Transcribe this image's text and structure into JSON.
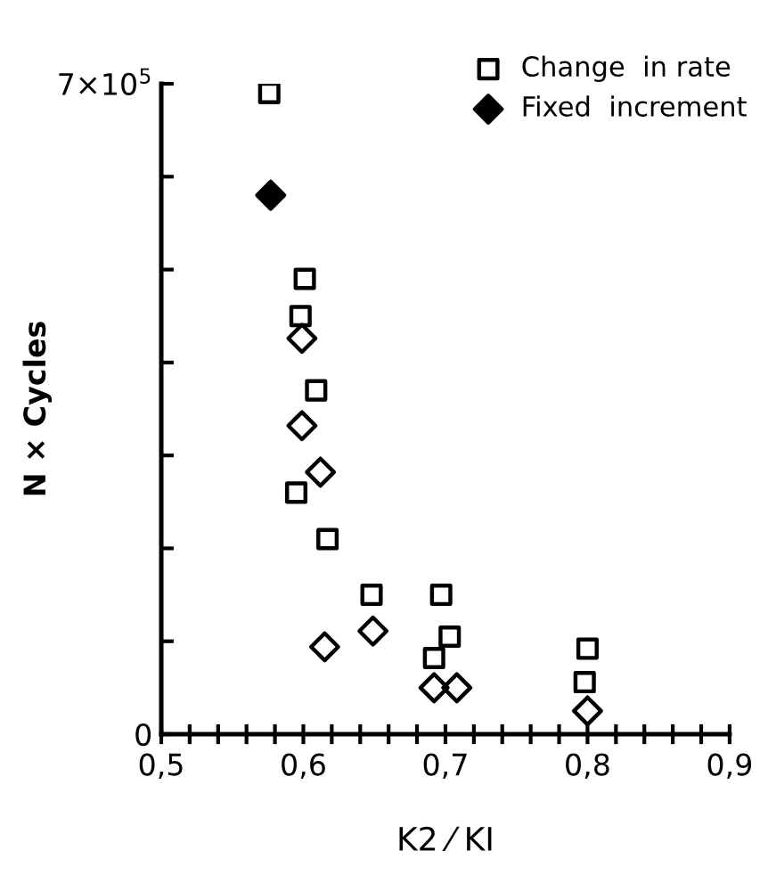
{
  "chart_data": {
    "type": "scatter",
    "xlabel": "K2 ⁄ KI",
    "ylabel": "N × Cycles",
    "xlim": [
      0.5,
      0.9
    ],
    "ylim": [
      0,
      700000
    ],
    "xticks": [
      {
        "value": 0.5,
        "label": "0,5"
      },
      {
        "value": 0.52,
        "label": null
      },
      {
        "value": 0.54,
        "label": null
      },
      {
        "value": 0.56,
        "label": null
      },
      {
        "value": 0.58,
        "label": null
      },
      {
        "value": 0.6,
        "label": "0,6"
      },
      {
        "value": 0.62,
        "label": null
      },
      {
        "value": 0.64,
        "label": null
      },
      {
        "value": 0.66,
        "label": null
      },
      {
        "value": 0.68,
        "label": null
      },
      {
        "value": 0.7,
        "label": "0,7"
      },
      {
        "value": 0.72,
        "label": null
      },
      {
        "value": 0.74,
        "label": null
      },
      {
        "value": 0.76,
        "label": null
      },
      {
        "value": 0.78,
        "label": null
      },
      {
        "value": 0.8,
        "label": "0,8"
      },
      {
        "value": 0.82,
        "label": null
      },
      {
        "value": 0.84,
        "label": null
      },
      {
        "value": 0.86,
        "label": null
      },
      {
        "value": 0.88,
        "label": null
      },
      {
        "value": 0.9,
        "label": "0,9"
      }
    ],
    "yticks": [
      {
        "value": 0,
        "label": "0"
      },
      {
        "value": 100000,
        "label": null
      },
      {
        "value": 200000,
        "label": null
      },
      {
        "value": 300000,
        "label": null
      },
      {
        "value": 400000,
        "label": null
      },
      {
        "value": 500000,
        "label": null
      },
      {
        "value": 600000,
        "label": null
      },
      {
        "value": 700000,
        "label": "7×10$^{5}$"
      }
    ],
    "grid": false,
    "legend": "top right",
    "series": [
      {
        "name": "Change  in rate",
        "color": "#000000",
        "marker": "square",
        "x": [
          0.576,
          0.601,
          0.598,
          0.609,
          0.595,
          0.617,
          0.648,
          0.697,
          0.703,
          0.692,
          0.8,
          0.798
        ],
        "values": [
          690000,
          490000,
          450000,
          370000,
          260000,
          210000,
          150000,
          150000,
          105000,
          82000,
          92000,
          56000
        ]
      },
      {
        "name": "Fixed  increment",
        "color": "#000000",
        "marker": "diamond",
        "x": [
          0.577
        ],
        "values": [
          580000
        ]
      },
      {
        "color": "#000000",
        "marker": "diamond",
        "x": [
          0.599,
          0.599,
          0.612,
          0.615,
          0.649,
          0.692,
          0.708,
          0.8
        ],
        "values": [
          426000,
          332000,
          282000,
          94000,
          111000,
          50000,
          50000,
          25000
        ]
      }
    ]
  }
}
